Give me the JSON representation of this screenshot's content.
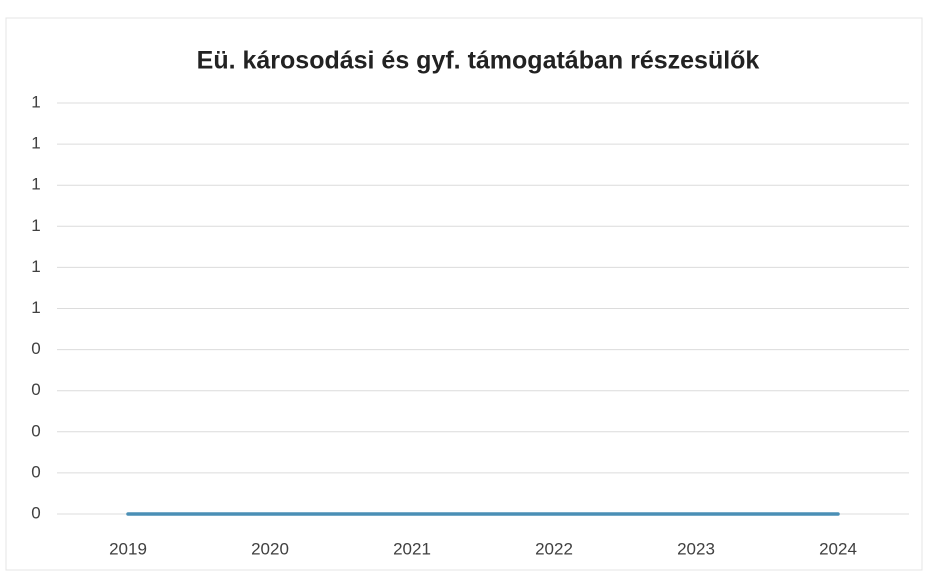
{
  "chart_data": {
    "type": "line",
    "title": "Eü. károsodási és gyf. támogatában részesülők",
    "categories": [
      "2019",
      "2020",
      "2021",
      "2022",
      "2023",
      "2024"
    ],
    "series": [
      {
        "name": "",
        "color": "#4a8fb5",
        "values": [
          0,
          0,
          0,
          0,
          0,
          0
        ]
      }
    ],
    "ylim": [
      0,
      1
    ],
    "yticks": [
      0,
      {
        "value": 0.1,
        "label": "0"
      },
      {
        "value": 0.2,
        "label": "0"
      },
      {
        "value": 0.3,
        "label": "0"
      },
      {
        "value": 0.4,
        "label": "0"
      },
      {
        "value": 0.5,
        "label": "1"
      },
      {
        "value": 0.6,
        "label": "1"
      },
      {
        "value": 0.7,
        "label": "1"
      },
      {
        "value": 0.8,
        "label": "1"
      },
      {
        "value": 0.9,
        "label": "1"
      },
      1
    ],
    "grid": true
  }
}
